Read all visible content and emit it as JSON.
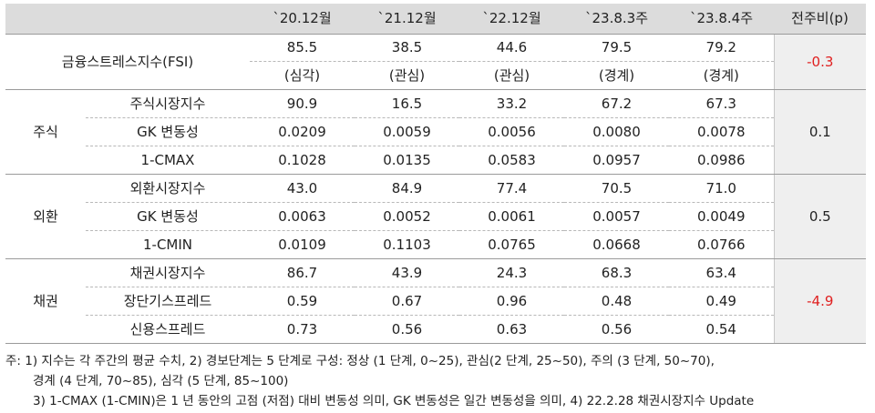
{
  "header": {
    "col_2012": "`20.12월",
    "col_2112": "`21.12월",
    "col_2212": "`22.12월",
    "col_2383": "`23.8.3주",
    "col_2384": "`23.8.4주",
    "col_change": "전주비(p)"
  },
  "fsi": {
    "label": "금융스트레스지수(FSI)",
    "values": [
      "85.5",
      "38.5",
      "44.6",
      "79.5",
      "79.2"
    ],
    "stages": [
      "(심각)",
      "(관심)",
      "(관심)",
      "(경계)",
      "(경계)"
    ],
    "change": "-0.3"
  },
  "stock": {
    "group": "주식",
    "change": "0.1",
    "rows": [
      {
        "label": "주식시장지수",
        "values": [
          "90.9",
          "16.5",
          "33.2",
          "67.2",
          "67.3"
        ]
      },
      {
        "label": "GK 변동성",
        "values": [
          "0.0209",
          "0.0059",
          "0.0056",
          "0.0080",
          "0.0078"
        ]
      },
      {
        "label": "1-CMAX",
        "values": [
          "0.1028",
          "0.0135",
          "0.0583",
          "0.0957",
          "0.0986"
        ]
      }
    ]
  },
  "fx": {
    "group": "외환",
    "change": "0.5",
    "rows": [
      {
        "label": "외환시장지수",
        "values": [
          "43.0",
          "84.9",
          "77.4",
          "70.5",
          "71.0"
        ]
      },
      {
        "label": "GK 변동성",
        "values": [
          "0.0063",
          "0.0052",
          "0.0061",
          "0.0057",
          "0.0049"
        ]
      },
      {
        "label": "1-CMIN",
        "values": [
          "0.0109",
          "0.1103",
          "0.0765",
          "0.0668",
          "0.0766"
        ]
      }
    ]
  },
  "bond": {
    "group": "채권",
    "change": "-4.9",
    "rows": [
      {
        "label": "채권시장지수",
        "values": [
          "86.7",
          "43.9",
          "24.3",
          "68.3",
          "63.4"
        ]
      },
      {
        "label": "장단기스프레드",
        "values": [
          "0.59",
          "0.67",
          "0.96",
          "0.48",
          "0.49"
        ]
      },
      {
        "label": "신용스프레드",
        "values": [
          "0.73",
          "0.56",
          "0.63",
          "0.56",
          "0.54"
        ]
      }
    ]
  },
  "notes": {
    "line1": "주: 1) 지수는 각 주간의 평균 수치, 2) 경보단계는 5 단계로 구성: 정상 (1 단계, 0~25), 관심(2 단계, 25~50), 주의 (3 단계, 50~70),",
    "line2": "경계 (4 단계, 70~85), 심각 (5 단계, 85~100)",
    "line3": "3) 1-CMAX (1-CMIN)은 1 년 동안의 고점 (저점) 대비 변동성 의미, GK 변동성은 일간 변동성을 의미, 4) 22.2.28 채권시장지수 Update"
  },
  "colors": {
    "negative": "#e02020",
    "header_bg": "#dcdcdc",
    "change_bg": "#efefef"
  }
}
